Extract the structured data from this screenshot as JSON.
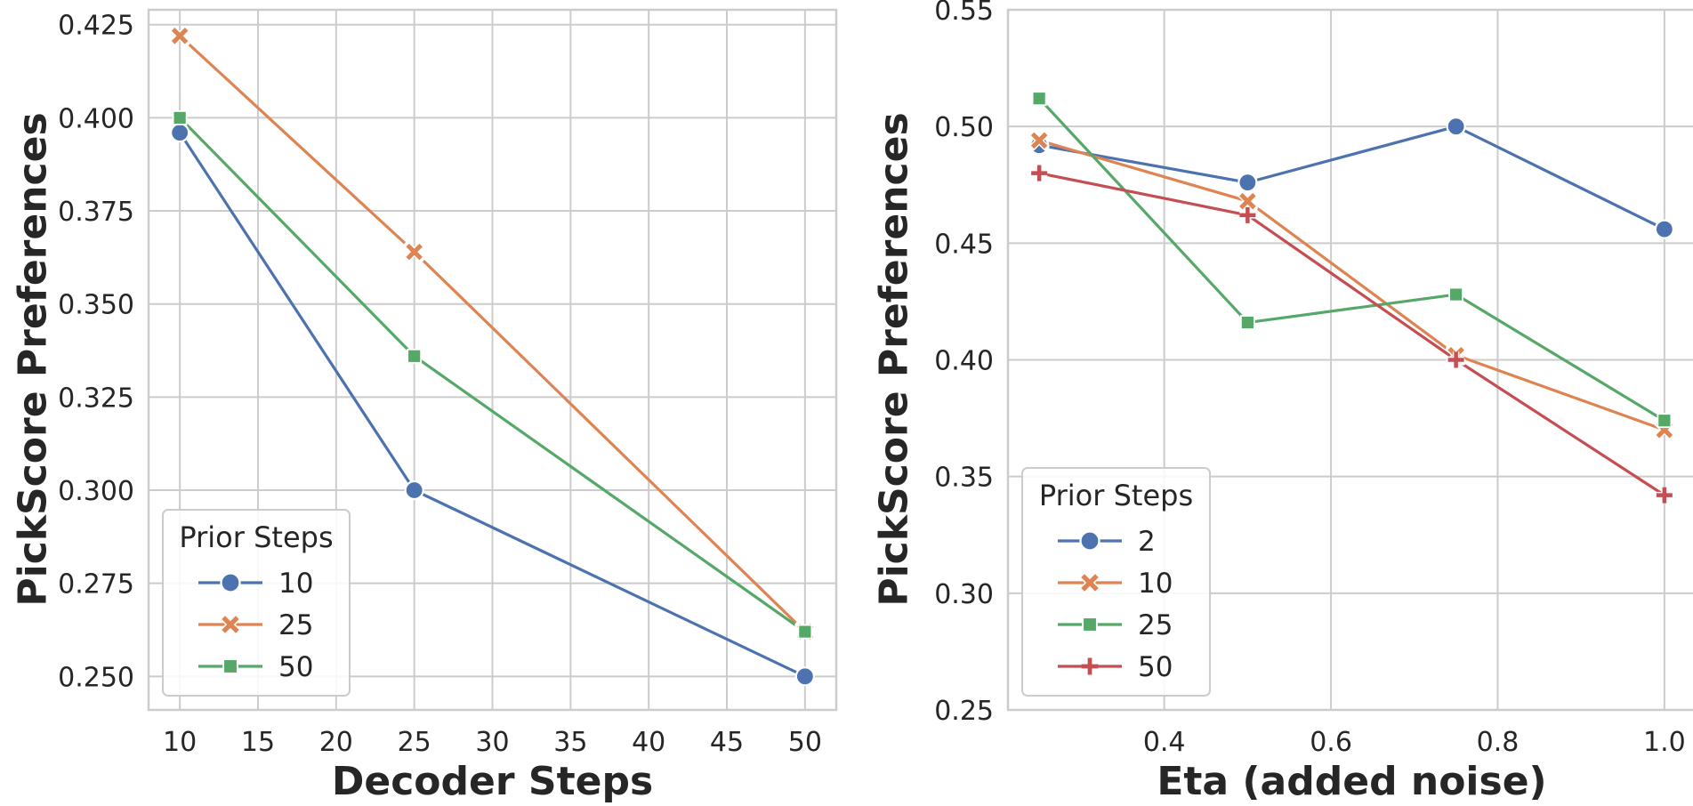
{
  "chart_data": [
    {
      "type": "line",
      "xlabel": "Decoder Steps",
      "ylabel": "PickScore Preferences",
      "xlim": [
        8,
        52
      ],
      "ylim": [
        0.241,
        0.429
      ],
      "xticks": [
        10,
        15,
        20,
        25,
        30,
        35,
        40,
        45,
        50
      ],
      "yticks": [
        0.25,
        0.275,
        0.3,
        0.325,
        0.35,
        0.375,
        0.4,
        0.425
      ],
      "xtick_labels": [
        "10",
        "15",
        "20",
        "25",
        "30",
        "35",
        "40",
        "45",
        "50"
      ],
      "ytick_labels": [
        "0.250",
        "0.275",
        "0.300",
        "0.325",
        "0.350",
        "0.375",
        "0.400",
        "0.425"
      ],
      "grid": true,
      "legend_title": "Prior Steps",
      "legend_location": "lower-left",
      "x": [
        10,
        25,
        50
      ],
      "series": [
        {
          "name": "10",
          "color": "#4c72b0",
          "marker": "circle",
          "values": [
            0.396,
            0.3,
            0.25
          ]
        },
        {
          "name": "25",
          "color": "#dd8452",
          "marker": "x",
          "values": [
            0.422,
            0.364,
            0.262
          ]
        },
        {
          "name": "50",
          "color": "#55a868",
          "marker": "square",
          "values": [
            0.4,
            0.336,
            0.262
          ]
        }
      ]
    },
    {
      "type": "line",
      "xlabel": "Eta (added noise)",
      "ylabel": "PickScore Preferences",
      "xlim": [
        0.2125,
        1.0375
      ],
      "ylim": [
        0.25,
        0.55
      ],
      "xticks": [
        0.4,
        0.6,
        0.8,
        1.0
      ],
      "yticks": [
        0.25,
        0.3,
        0.35,
        0.4,
        0.45,
        0.5,
        0.55
      ],
      "xtick_labels": [
        "0.4",
        "0.6",
        "0.8",
        "1.0"
      ],
      "ytick_labels": [
        "0.25",
        "0.30",
        "0.35",
        "0.40",
        "0.45",
        "0.50",
        "0.55"
      ],
      "grid": true,
      "legend_title": "Prior Steps",
      "legend_location": "lower-left",
      "x": [
        0.25,
        0.5,
        0.75,
        1.0
      ],
      "series": [
        {
          "name": "2",
          "color": "#4c72b0",
          "marker": "circle",
          "values": [
            0.492,
            0.476,
            0.5,
            0.456
          ]
        },
        {
          "name": "10",
          "color": "#dd8452",
          "marker": "x",
          "values": [
            0.494,
            0.468,
            0.402,
            0.37
          ]
        },
        {
          "name": "25",
          "color": "#55a868",
          "marker": "square",
          "values": [
            0.512,
            0.416,
            0.428,
            0.374
          ]
        },
        {
          "name": "50",
          "color": "#c44e52",
          "marker": "plus",
          "values": [
            0.48,
            0.462,
            0.4,
            0.342
          ]
        }
      ]
    }
  ]
}
